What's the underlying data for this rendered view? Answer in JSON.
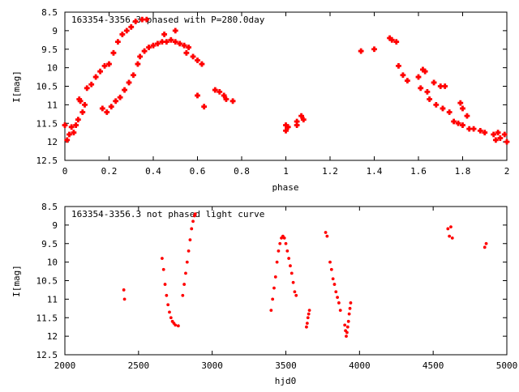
{
  "chart_data": [
    {
      "type": "scatter",
      "title": "163354-3356.3 phased with P=280.0day",
      "xlabel": "phase",
      "ylabel": "I[mag]",
      "xlim": [
        0,
        2
      ],
      "ylim": [
        8.5,
        12.5
      ],
      "y_inverted": true,
      "grid": false,
      "xticks": [
        0,
        0.2,
        0.4,
        0.6,
        0.8,
        1,
        1.2,
        1.4,
        1.6,
        1.8,
        2
      ],
      "xtick_labels": [
        "0",
        "0.2",
        "0.4",
        "0.6",
        "0.8",
        "1",
        "1.2",
        "1.4",
        "1.6",
        "1.8",
        "2"
      ],
      "yticks": [
        8.5,
        9,
        9.5,
        10,
        10.5,
        11,
        11.5,
        12,
        12.5
      ],
      "ytick_labels": [
        "8.5",
        "9",
        "9.5",
        "10",
        "10.5",
        "11",
        "11.5",
        "12",
        "12.5"
      ],
      "marker_color": "#ff0000",
      "points": [
        [
          0.0,
          11.55
        ],
        [
          0.01,
          11.95
        ],
        [
          0.02,
          11.8
        ],
        [
          0.03,
          11.6
        ],
        [
          0.04,
          11.75
        ],
        [
          0.05,
          11.55
        ],
        [
          0.06,
          11.4
        ],
        [
          0.065,
          10.85
        ],
        [
          0.07,
          10.9
        ],
        [
          0.08,
          11.2
        ],
        [
          0.09,
          11.0
        ],
        [
          0.1,
          10.55
        ],
        [
          0.12,
          10.45
        ],
        [
          0.14,
          10.25
        ],
        [
          0.16,
          10.1
        ],
        [
          0.17,
          11.1
        ],
        [
          0.18,
          9.95
        ],
        [
          0.19,
          11.2
        ],
        [
          0.2,
          9.9
        ],
        [
          0.21,
          11.05
        ],
        [
          0.22,
          9.6
        ],
        [
          0.23,
          10.9
        ],
        [
          0.24,
          9.3
        ],
        [
          0.25,
          10.8
        ],
        [
          0.26,
          9.1
        ],
        [
          0.27,
          10.6
        ],
        [
          0.28,
          9.0
        ],
        [
          0.29,
          10.4
        ],
        [
          0.3,
          8.9
        ],
        [
          0.31,
          10.2
        ],
        [
          0.32,
          8.75
        ],
        [
          0.33,
          9.9
        ],
        [
          0.34,
          9.7
        ],
        [
          0.35,
          8.7
        ],
        [
          0.36,
          9.55
        ],
        [
          0.37,
          8.7
        ],
        [
          0.38,
          9.45
        ],
        [
          0.4,
          9.4
        ],
        [
          0.42,
          9.35
        ],
        [
          0.44,
          9.3
        ],
        [
          0.45,
          9.1
        ],
        [
          0.46,
          9.3
        ],
        [
          0.48,
          9.25
        ],
        [
          0.5,
          9.3
        ],
        [
          0.5,
          9.0
        ],
        [
          0.52,
          9.35
        ],
        [
          0.54,
          9.4
        ],
        [
          0.55,
          9.6
        ],
        [
          0.56,
          9.45
        ],
        [
          0.58,
          9.7
        ],
        [
          0.6,
          9.8
        ],
        [
          0.6,
          10.75
        ],
        [
          0.62,
          9.9
        ],
        [
          0.63,
          11.05
        ],
        [
          0.68,
          10.6
        ],
        [
          0.7,
          10.65
        ],
        [
          0.72,
          10.75
        ],
        [
          0.73,
          10.85
        ],
        [
          0.76,
          10.9
        ],
        [
          1.0,
          11.55
        ],
        [
          1.0,
          11.7
        ],
        [
          1.01,
          11.6
        ],
        [
          1.05,
          11.45
        ],
        [
          1.05,
          11.55
        ],
        [
          1.07,
          11.3
        ],
        [
          1.08,
          11.4
        ],
        [
          1.34,
          9.55
        ],
        [
          1.4,
          9.5
        ],
        [
          1.47,
          9.2
        ],
        [
          1.48,
          9.25
        ],
        [
          1.5,
          9.3
        ],
        [
          1.51,
          9.95
        ],
        [
          1.53,
          10.2
        ],
        [
          1.55,
          10.35
        ],
        [
          1.6,
          10.25
        ],
        [
          1.61,
          10.55
        ],
        [
          1.62,
          10.05
        ],
        [
          1.63,
          10.1
        ],
        [
          1.64,
          10.65
        ],
        [
          1.65,
          10.85
        ],
        [
          1.67,
          10.4
        ],
        [
          1.68,
          11.0
        ],
        [
          1.7,
          10.5
        ],
        [
          1.71,
          11.1
        ],
        [
          1.72,
          10.5
        ],
        [
          1.74,
          11.2
        ],
        [
          1.76,
          11.45
        ],
        [
          1.78,
          11.5
        ],
        [
          1.79,
          10.95
        ],
        [
          1.8,
          11.1
        ],
        [
          1.8,
          11.55
        ],
        [
          1.82,
          11.3
        ],
        [
          1.83,
          11.65
        ],
        [
          1.85,
          11.65
        ],
        [
          1.88,
          11.7
        ],
        [
          1.9,
          11.75
        ],
        [
          1.94,
          11.8
        ],
        [
          1.95,
          11.95
        ],
        [
          1.96,
          11.75
        ],
        [
          1.97,
          11.9
        ],
        [
          1.99,
          11.8
        ],
        [
          2.0,
          12.0
        ]
      ]
    },
    {
      "type": "scatter",
      "title": "163354-3356.3 not phased light curve",
      "xlabel": "hjd0",
      "ylabel": "I[mag]",
      "xlim": [
        2000,
        5000
      ],
      "ylim": [
        8.5,
        12.5
      ],
      "y_inverted": true,
      "grid": false,
      "xticks": [
        2000,
        2500,
        3000,
        3500,
        4000,
        4500,
        5000
      ],
      "xtick_labels": [
        "2000",
        "2500",
        "3000",
        "3500",
        "4000",
        "4500",
        "5000"
      ],
      "yticks": [
        8.5,
        9,
        9.5,
        10,
        10.5,
        11,
        11.5,
        12,
        12.5
      ],
      "ytick_labels": [
        "8.5",
        "9",
        "9.5",
        "10",
        "10.5",
        "11",
        "11.5",
        "12",
        "12.5"
      ],
      "marker_color": "#ff0000",
      "points": [
        [
          2400,
          10.75
        ],
        [
          2405,
          11.0
        ],
        [
          2660,
          9.9
        ],
        [
          2670,
          10.2
        ],
        [
          2680,
          10.6
        ],
        [
          2690,
          10.9
        ],
        [
          2700,
          11.15
        ],
        [
          2710,
          11.35
        ],
        [
          2720,
          11.5
        ],
        [
          2730,
          11.6
        ],
        [
          2740,
          11.65
        ],
        [
          2750,
          11.7
        ],
        [
          2770,
          11.72
        ],
        [
          2800,
          10.9
        ],
        [
          2810,
          10.6
        ],
        [
          2820,
          10.3
        ],
        [
          2830,
          10.0
        ],
        [
          2840,
          9.7
        ],
        [
          2850,
          9.4
        ],
        [
          2860,
          9.1
        ],
        [
          2870,
          8.9
        ],
        [
          2880,
          8.75
        ],
        [
          2885,
          8.7
        ],
        [
          3400,
          11.3
        ],
        [
          3410,
          11.0
        ],
        [
          3420,
          10.7
        ],
        [
          3430,
          10.4
        ],
        [
          3440,
          10.0
        ],
        [
          3450,
          9.7
        ],
        [
          3460,
          9.5
        ],
        [
          3470,
          9.35
        ],
        [
          3480,
          9.3
        ],
        [
          3490,
          9.35
        ],
        [
          3500,
          9.5
        ],
        [
          3510,
          9.7
        ],
        [
          3520,
          9.9
        ],
        [
          3530,
          10.1
        ],
        [
          3540,
          10.3
        ],
        [
          3550,
          10.55
        ],
        [
          3560,
          10.8
        ],
        [
          3570,
          10.9
        ],
        [
          3640,
          11.75
        ],
        [
          3645,
          11.65
        ],
        [
          3650,
          11.5
        ],
        [
          3655,
          11.4
        ],
        [
          3660,
          11.3
        ],
        [
          3770,
          9.2
        ],
        [
          3780,
          9.3
        ],
        [
          3800,
          10.0
        ],
        [
          3810,
          10.2
        ],
        [
          3820,
          10.45
        ],
        [
          3830,
          10.6
        ],
        [
          3840,
          10.8
        ],
        [
          3850,
          10.95
        ],
        [
          3860,
          11.1
        ],
        [
          3870,
          11.3
        ],
        [
          3900,
          11.7
        ],
        [
          3905,
          11.85
        ],
        [
          3910,
          12.0
        ],
        [
          3915,
          11.9
        ],
        [
          3920,
          11.75
        ],
        [
          3925,
          11.6
        ],
        [
          3930,
          11.4
        ],
        [
          3935,
          11.25
        ],
        [
          3940,
          11.1
        ],
        [
          4600,
          9.1
        ],
        [
          4610,
          9.3
        ],
        [
          4620,
          9.05
        ],
        [
          4630,
          9.35
        ],
        [
          4850,
          9.6
        ],
        [
          4860,
          9.5
        ]
      ]
    }
  ]
}
